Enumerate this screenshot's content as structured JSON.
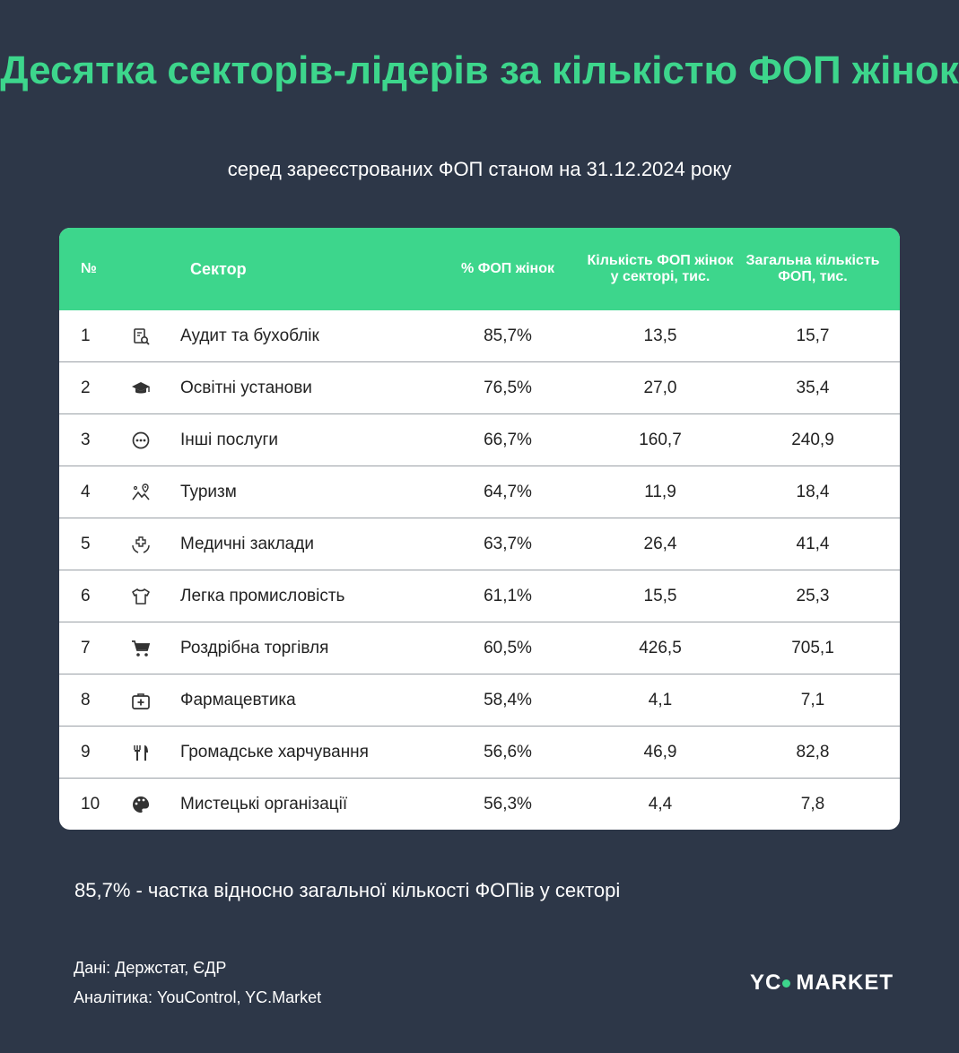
{
  "title": "Десятка секторів-лідерів за кількістю ФОП жінок",
  "subtitle": "серед зареєстрованих ФОП станом на 31.12.2024 року",
  "chart_data": {
    "type": "table",
    "columns": [
      "№",
      "Сектор",
      "% ФОП жінок",
      "Кількість ФОП жінок у секторі, тис.",
      "Загальна кількість ФОП, тис."
    ],
    "rows": [
      {
        "num": "1",
        "icon": "audit-icon",
        "sector": "Аудит та бухоблік",
        "pct": "85,7%",
        "count": "13,5",
        "total": "15,7"
      },
      {
        "num": "2",
        "icon": "graduation-cap-icon",
        "sector": "Освітні установи",
        "pct": "76,5%",
        "count": "27,0",
        "total": "35,4"
      },
      {
        "num": "3",
        "icon": "more-circle-icon",
        "sector": "Інші послуги",
        "pct": "66,7%",
        "count": "160,7",
        "total": "240,9"
      },
      {
        "num": "4",
        "icon": "landscape-pin-icon",
        "sector": "Туризм",
        "pct": "64,7%",
        "count": "11,9",
        "total": "18,4"
      },
      {
        "num": "5",
        "icon": "medical-hands-icon",
        "sector": "Медичні заклади",
        "pct": "63,7%",
        "count": "26,4",
        "total": "41,4"
      },
      {
        "num": "6",
        "icon": "tshirt-icon",
        "sector": "Легка промисловість",
        "pct": "61,1%",
        "count": "15,5",
        "total": "25,3"
      },
      {
        "num": "7",
        "icon": "shopping-cart-icon",
        "sector": "Роздрібна торгівля",
        "pct": "60,5%",
        "count": "426,5",
        "total": "705,1"
      },
      {
        "num": "8",
        "icon": "first-aid-kit-icon",
        "sector": "Фармацевтика",
        "pct": "58,4%",
        "count": "4,1",
        "total": "7,1"
      },
      {
        "num": "9",
        "icon": "fork-knife-icon",
        "sector": "Громадське харчування",
        "pct": "56,6%",
        "count": "46,9",
        "total": "82,8"
      },
      {
        "num": "10",
        "icon": "palette-icon",
        "sector": "Мистецькі організації",
        "pct": "56,3%",
        "count": "4,4",
        "total": "7,8"
      }
    ]
  },
  "note": "85,7% - частка відносно загальної кількості ФОПів у секторі",
  "source_data": "Дані: Держстат, ЄДР",
  "source_analytics": "Аналітика: YouControl, YC.Market",
  "logo": {
    "left": "YC",
    "right": "MARKET"
  },
  "colors": {
    "background": "#2d3748",
    "accent": "#3dd68c",
    "row_text": "#222222"
  }
}
